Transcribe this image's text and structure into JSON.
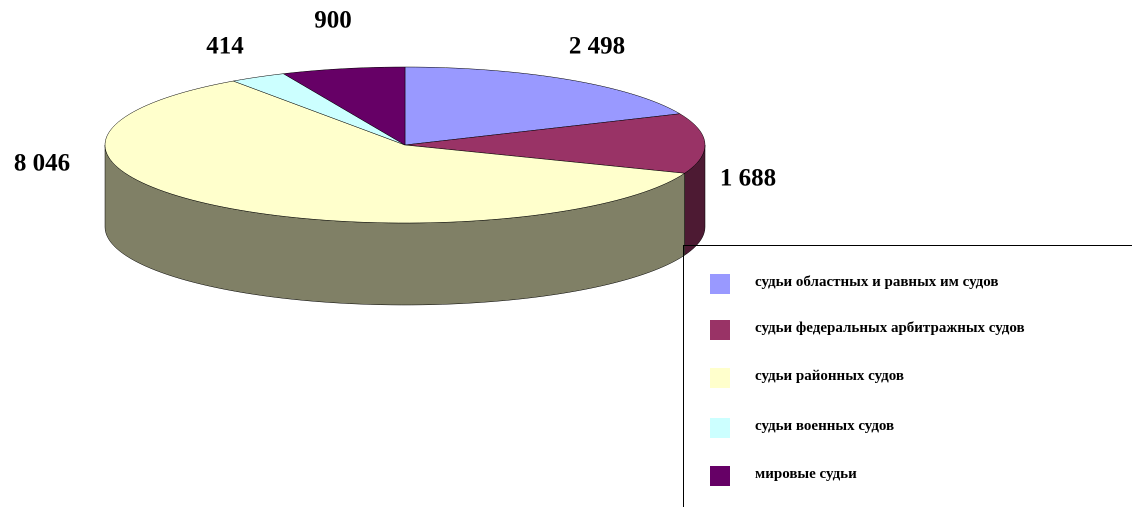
{
  "chart_data": {
    "type": "pie",
    "categories": [
      "судьи областных и равных им судов",
      "судьи федеральных арбитражных судов",
      "судьи районных судов",
      "судьи военных судов",
      "мировые судьи"
    ],
    "values": [
      2498,
      1688,
      8046,
      414,
      900
    ],
    "value_labels": [
      "2 498",
      "1 688",
      "8 046",
      "414",
      "900"
    ],
    "colors": [
      "#9999ff",
      "#993366",
      "#ffffcc",
      "#ccffff",
      "#660066"
    ],
    "legend": "right"
  }
}
